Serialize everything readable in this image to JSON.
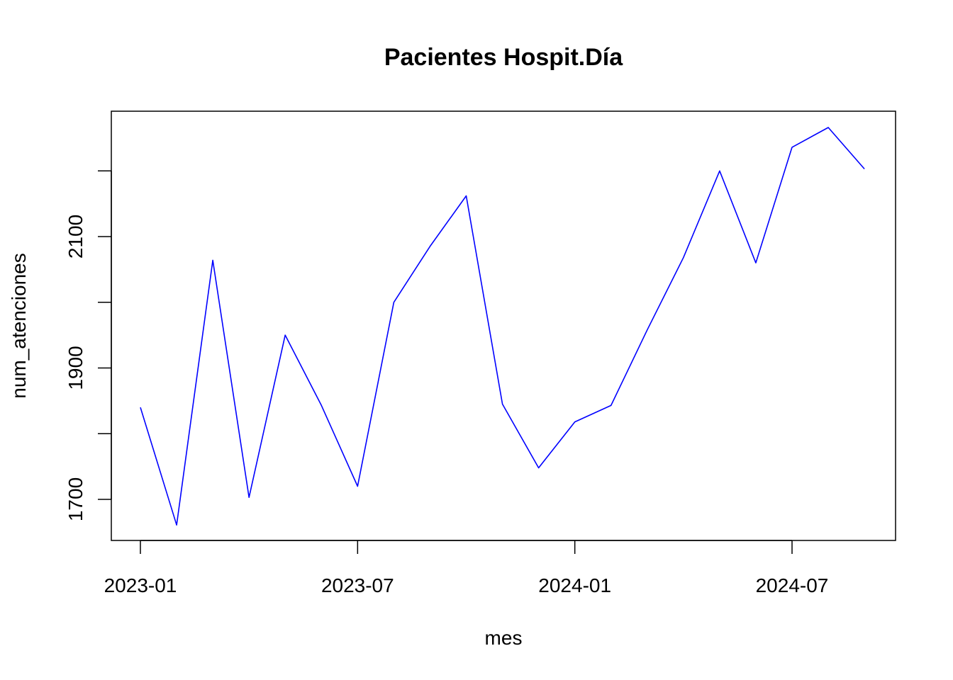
{
  "chart_data": {
    "type": "line",
    "title": "Pacientes Hospit.Día",
    "xlabel": "mes",
    "ylabel": "num_atenciones",
    "x_ticks": [
      "2023-01",
      "2023-07",
      "2024-01",
      "2024-07"
    ],
    "y_ticks": [
      1700,
      1900,
      2100
    ],
    "ylim": [
      1642,
      2223
    ],
    "grid": false,
    "series": [
      {
        "color": "#0000ff",
        "points": [
          {
            "x": "2023-01",
            "y": 1840
          },
          {
            "x": "2023-02",
            "y": 1661
          },
          {
            "x": "2023-03",
            "y": 2064
          },
          {
            "x": "2023-04",
            "y": 1703
          },
          {
            "x": "2023-05",
            "y": 1950
          },
          {
            "x": "2023-06",
            "y": 1843
          },
          {
            "x": "2023-07",
            "y": 1720
          },
          {
            "x": "2023-08",
            "y": 2000
          },
          {
            "x": "2023-09",
            "y": 2085
          },
          {
            "x": "2023-10",
            "y": 2162
          },
          {
            "x": "2023-11",
            "y": 1845
          },
          {
            "x": "2023-12",
            "y": 1748
          },
          {
            "x": "2024-01",
            "y": 1818
          },
          {
            "x": "2024-02",
            "y": 1843
          },
          {
            "x": "2024-03",
            "y": 1958
          },
          {
            "x": "2024-04",
            "y": 2068
          },
          {
            "x": "2024-05",
            "y": 2200
          },
          {
            "x": "2024-06",
            "y": 2060
          },
          {
            "x": "2024-07",
            "y": 2236
          },
          {
            "x": "2024-08",
            "y": 2266
          },
          {
            "x": "2024-09",
            "y": 2203
          }
        ]
      }
    ]
  }
}
